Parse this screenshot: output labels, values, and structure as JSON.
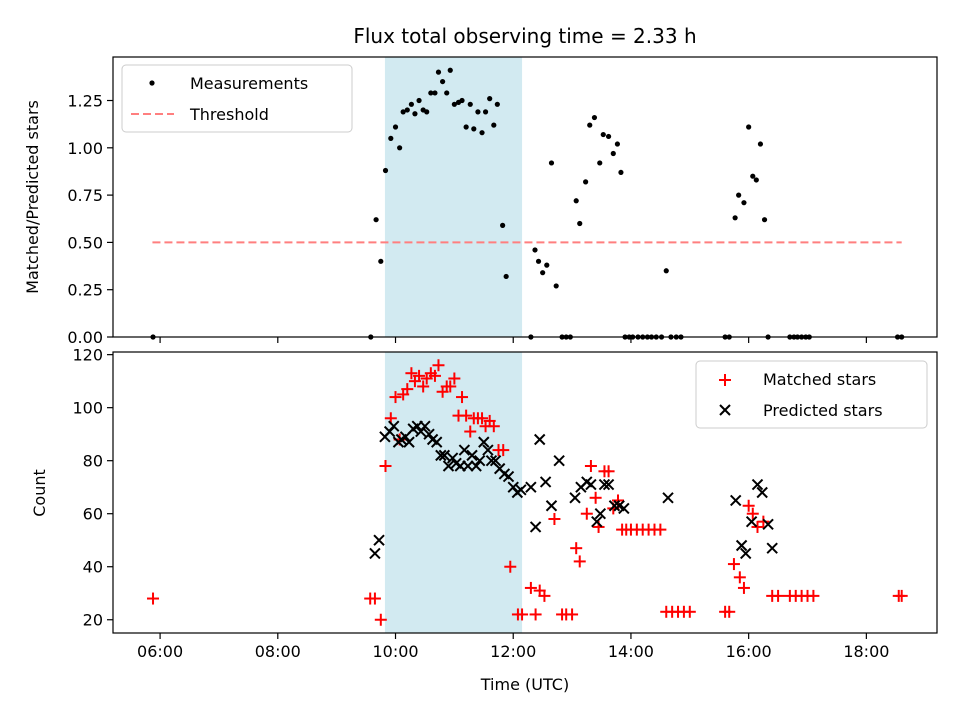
{
  "chart_data": [
    {
      "type": "scatter",
      "title": "Flux total observing time = 2.33 h",
      "xlabel": "",
      "ylabel": "Matched/Predicted stars",
      "xlim_hours": [
        5.2,
        19.2
      ],
      "ylim": [
        0,
        1.48
      ],
      "x_tick_labels": [
        "06:00",
        "08:00",
        "10:00",
        "12:00",
        "14:00",
        "16:00",
        "18:00"
      ],
      "x_tick_hours": [
        6,
        8,
        10,
        12,
        14,
        16,
        18
      ],
      "yticks": [
        0.0,
        0.25,
        0.5,
        0.75,
        1.0,
        1.25
      ],
      "ytick_labels": [
        "0.00",
        "0.25",
        "0.50",
        "0.75",
        "1.00",
        "1.25"
      ],
      "shaded_span_hours": [
        9.82,
        12.15
      ],
      "shaded_color": "#add8e6",
      "legend": {
        "placement": "upper-left",
        "entries": [
          {
            "label": "Measurements",
            "marker": "dot",
            "color": "#000000"
          },
          {
            "label": "Threshold",
            "marker": "dashed-line",
            "color": "#ff7f7f"
          }
        ]
      },
      "threshold": {
        "y": 0.5,
        "x_range_hours": [
          5.87,
          18.6
        ],
        "color": "#ff7f7f"
      },
      "series": [
        {
          "name": "Measurements",
          "color": "#000000",
          "points": [
            [
              5.88,
              0.0
            ],
            [
              9.58,
              0.0
            ],
            [
              9.67,
              0.62
            ],
            [
              9.75,
              0.4
            ],
            [
              9.83,
              0.88
            ],
            [
              9.92,
              1.05
            ],
            [
              10.0,
              1.11
            ],
            [
              10.07,
              1.0
            ],
            [
              10.13,
              1.19
            ],
            [
              10.2,
              1.2
            ],
            [
              10.27,
              1.23
            ],
            [
              10.33,
              1.18
            ],
            [
              10.4,
              1.25
            ],
            [
              10.47,
              1.2
            ],
            [
              10.53,
              1.19
            ],
            [
              10.6,
              1.29
            ],
            [
              10.67,
              1.29
            ],
            [
              10.73,
              1.4
            ],
            [
              10.8,
              1.35
            ],
            [
              10.87,
              1.29
            ],
            [
              10.93,
              1.41
            ],
            [
              11.0,
              1.23
            ],
            [
              11.07,
              1.24
            ],
            [
              11.13,
              1.25
            ],
            [
              11.2,
              1.11
            ],
            [
              11.27,
              1.23
            ],
            [
              11.33,
              1.1
            ],
            [
              11.4,
              1.19
            ],
            [
              11.47,
              1.08
            ],
            [
              11.53,
              1.19
            ],
            [
              11.6,
              1.26
            ],
            [
              11.67,
              1.12
            ],
            [
              11.73,
              1.23
            ],
            [
              11.82,
              0.59
            ],
            [
              11.88,
              0.32
            ],
            [
              12.3,
              0.0
            ],
            [
              12.37,
              0.46
            ],
            [
              12.43,
              0.4
            ],
            [
              12.5,
              0.34
            ],
            [
              12.57,
              0.38
            ],
            [
              12.65,
              0.92
            ],
            [
              12.73,
              0.27
            ],
            [
              12.83,
              0.0
            ],
            [
              12.9,
              0.0
            ],
            [
              12.97,
              0.0
            ],
            [
              13.07,
              0.72
            ],
            [
              13.13,
              0.6
            ],
            [
              13.23,
              0.82
            ],
            [
              13.3,
              1.12
            ],
            [
              13.38,
              1.16
            ],
            [
              13.47,
              0.92
            ],
            [
              13.53,
              1.07
            ],
            [
              13.62,
              1.06
            ],
            [
              13.7,
              0.97
            ],
            [
              13.77,
              1.02
            ],
            [
              13.83,
              0.87
            ],
            [
              13.9,
              0.0
            ],
            [
              13.97,
              0.0
            ],
            [
              14.03,
              0.0
            ],
            [
              14.12,
              0.0
            ],
            [
              14.2,
              0.0
            ],
            [
              14.28,
              0.0
            ],
            [
              14.35,
              0.0
            ],
            [
              14.43,
              0.0
            ],
            [
              14.52,
              0.0
            ],
            [
              14.6,
              0.35
            ],
            [
              14.68,
              0.0
            ],
            [
              14.77,
              0.0
            ],
            [
              14.85,
              0.0
            ],
            [
              15.6,
              0.0
            ],
            [
              15.67,
              0.0
            ],
            [
              15.77,
              0.63
            ],
            [
              15.83,
              0.75
            ],
            [
              15.92,
              0.71
            ],
            [
              16.0,
              1.11
            ],
            [
              16.07,
              0.85
            ],
            [
              16.13,
              0.83
            ],
            [
              16.2,
              1.02
            ],
            [
              16.27,
              0.62
            ],
            [
              16.33,
              0.0
            ],
            [
              16.7,
              0.0
            ],
            [
              16.77,
              0.0
            ],
            [
              16.83,
              0.0
            ],
            [
              16.9,
              0.0
            ],
            [
              16.97,
              0.0
            ],
            [
              17.03,
              0.0
            ],
            [
              18.53,
              0.0
            ],
            [
              18.6,
              0.0
            ]
          ]
        }
      ]
    },
    {
      "type": "scatter",
      "title": "",
      "xlabel": "Time (UTC)",
      "ylabel": "Count",
      "xlim_hours": [
        5.2,
        19.2
      ],
      "ylim": [
        15,
        121
      ],
      "x_tick_labels": [
        "06:00",
        "08:00",
        "10:00",
        "12:00",
        "14:00",
        "16:00",
        "18:00"
      ],
      "x_tick_hours": [
        6,
        8,
        10,
        12,
        14,
        16,
        18
      ],
      "yticks": [
        20,
        40,
        60,
        80,
        100,
        120
      ],
      "ytick_labels": [
        "20",
        "40",
        "60",
        "80",
        "100",
        "120"
      ],
      "shaded_span_hours": [
        9.82,
        12.15
      ],
      "shaded_color": "#add8e6",
      "legend": {
        "placement": "upper-right",
        "entries": [
          {
            "label": "Matched stars",
            "marker": "plus",
            "color": "#ff0000"
          },
          {
            "label": "Predicted stars",
            "marker": "x",
            "color": "#000000"
          }
        ]
      },
      "series": [
        {
          "name": "Matched stars",
          "color": "#ff0000",
          "points": [
            [
              5.88,
              28
            ],
            [
              9.57,
              28
            ],
            [
              9.65,
              28
            ],
            [
              9.75,
              20
            ],
            [
              9.83,
              78
            ],
            [
              9.92,
              96
            ],
            [
              10.0,
              104
            ],
            [
              10.07,
              88
            ],
            [
              10.13,
              105
            ],
            [
              10.2,
              107
            ],
            [
              10.27,
              113
            ],
            [
              10.33,
              110
            ],
            [
              10.4,
              112
            ],
            [
              10.47,
              108
            ],
            [
              10.53,
              111
            ],
            [
              10.6,
              113
            ],
            [
              10.67,
              112
            ],
            [
              10.73,
              116
            ],
            [
              10.8,
              106
            ],
            [
              10.87,
              108
            ],
            [
              10.93,
              108
            ],
            [
              11.0,
              111
            ],
            [
              11.07,
              97
            ],
            [
              11.13,
              104
            ],
            [
              11.2,
              97
            ],
            [
              11.27,
              91
            ],
            [
              11.33,
              96
            ],
            [
              11.4,
              96
            ],
            [
              11.47,
              96
            ],
            [
              11.53,
              93
            ],
            [
              11.6,
              95
            ],
            [
              11.67,
              93
            ],
            [
              11.75,
              84
            ],
            [
              11.83,
              84
            ],
            [
              11.95,
              40
            ],
            [
              12.08,
              22
            ],
            [
              12.15,
              22
            ],
            [
              12.3,
              32
            ],
            [
              12.38,
              22
            ],
            [
              12.45,
              31
            ],
            [
              12.53,
              29
            ],
            [
              12.7,
              58
            ],
            [
              12.83,
              22
            ],
            [
              12.9,
              22
            ],
            [
              13.0,
              22
            ],
            [
              13.07,
              47
            ],
            [
              13.13,
              42
            ],
            [
              13.25,
              60
            ],
            [
              13.32,
              78
            ],
            [
              13.4,
              66
            ],
            [
              13.45,
              55
            ],
            [
              13.55,
              76
            ],
            [
              13.62,
              76
            ],
            [
              13.7,
              62
            ],
            [
              13.78,
              65
            ],
            [
              13.85,
              54
            ],
            [
              13.92,
              54
            ],
            [
              14.0,
              54
            ],
            [
              14.1,
              54
            ],
            [
              14.2,
              54
            ],
            [
              14.3,
              54
            ],
            [
              14.4,
              54
            ],
            [
              14.5,
              54
            ],
            [
              14.6,
              23
            ],
            [
              14.7,
              23
            ],
            [
              14.8,
              23
            ],
            [
              14.9,
              23
            ],
            [
              15.0,
              23
            ],
            [
              15.6,
              23
            ],
            [
              15.67,
              23
            ],
            [
              15.75,
              41
            ],
            [
              15.85,
              36
            ],
            [
              15.92,
              32
            ],
            [
              16.0,
              63
            ],
            [
              16.07,
              60
            ],
            [
              16.15,
              55
            ],
            [
              16.25,
              57
            ],
            [
              16.4,
              29
            ],
            [
              16.5,
              29
            ],
            [
              16.7,
              29
            ],
            [
              16.8,
              29
            ],
            [
              16.9,
              29
            ],
            [
              17.0,
              29
            ],
            [
              17.1,
              29
            ],
            [
              18.55,
              29
            ],
            [
              18.6,
              29
            ]
          ]
        },
        {
          "name": "Predicted stars",
          "color": "#000000",
          "points": [
            [
              9.65,
              45
            ],
            [
              9.72,
              50
            ],
            [
              9.82,
              89
            ],
            [
              9.9,
              91
            ],
            [
              9.97,
              93
            ],
            [
              10.05,
              87
            ],
            [
              10.1,
              88
            ],
            [
              10.17,
              89
            ],
            [
              10.23,
              87
            ],
            [
              10.3,
              92
            ],
            [
              10.37,
              93
            ],
            [
              10.43,
              91
            ],
            [
              10.5,
              93
            ],
            [
              10.57,
              90
            ],
            [
              10.63,
              88
            ],
            [
              10.7,
              87
            ],
            [
              10.77,
              82
            ],
            [
              10.83,
              82
            ],
            [
              10.9,
              78
            ],
            [
              10.97,
              81
            ],
            [
              11.03,
              79
            ],
            [
              11.1,
              78
            ],
            [
              11.17,
              84
            ],
            [
              11.23,
              78
            ],
            [
              11.3,
              82
            ],
            [
              11.37,
              78
            ],
            [
              11.43,
              80
            ],
            [
              11.5,
              87
            ],
            [
              11.57,
              84
            ],
            [
              11.63,
              80
            ],
            [
              11.7,
              80
            ],
            [
              11.77,
              77
            ],
            [
              11.85,
              75
            ],
            [
              11.92,
              74
            ],
            [
              12.0,
              70
            ],
            [
              12.07,
              68
            ],
            [
              12.13,
              69
            ],
            [
              12.3,
              70
            ],
            [
              12.38,
              55
            ],
            [
              12.45,
              88
            ],
            [
              12.55,
              72
            ],
            [
              12.65,
              63
            ],
            [
              12.78,
              80
            ],
            [
              13.05,
              66
            ],
            [
              13.15,
              70
            ],
            [
              13.25,
              72
            ],
            [
              13.32,
              71
            ],
            [
              13.42,
              57
            ],
            [
              13.48,
              60
            ],
            [
              13.55,
              71
            ],
            [
              13.62,
              71
            ],
            [
              13.72,
              63
            ],
            [
              13.8,
              63
            ],
            [
              13.88,
              62
            ],
            [
              14.63,
              66
            ],
            [
              15.78,
              65
            ],
            [
              15.88,
              48
            ],
            [
              15.95,
              45
            ],
            [
              16.05,
              57
            ],
            [
              16.15,
              71
            ],
            [
              16.23,
              68
            ],
            [
              16.33,
              56
            ],
            [
              16.4,
              47
            ]
          ]
        }
      ]
    }
  ]
}
